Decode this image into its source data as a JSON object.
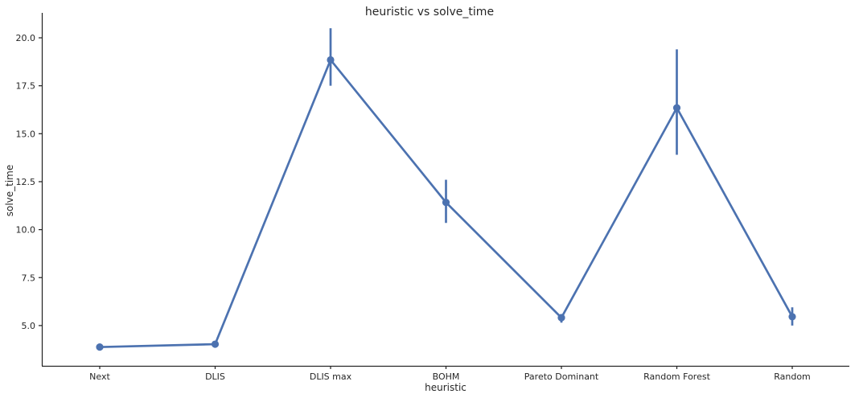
{
  "chart_data": {
    "type": "line",
    "title": "heuristic vs solve_time",
    "xlabel": "heuristic",
    "ylabel": "solve_time",
    "categories": [
      "Next",
      "DLIS",
      "DLIS max",
      "BOHM",
      "Pareto Dominant",
      "Random Forest",
      "Random"
    ],
    "series": [
      {
        "values": [
          3.88,
          4.03,
          18.85,
          11.42,
          5.41,
          16.35,
          5.46
        ],
        "error_low": [
          3.84,
          3.99,
          17.5,
          10.35,
          5.15,
          13.9,
          5.0
        ],
        "error_high": [
          3.92,
          4.07,
          20.5,
          12.6,
          5.6,
          19.4,
          5.95
        ],
        "color": "#4c72b0"
      }
    ],
    "ylim": [
      2.9,
      21.3
    ],
    "yticks": [
      5.0,
      7.5,
      10.0,
      12.5,
      15.0,
      17.5,
      20.0
    ],
    "ytick_labels": [
      "5.0",
      "7.5",
      "10.0",
      "12.5",
      "15.0",
      "17.5",
      "20.0"
    ],
    "grid": false,
    "legend": "none"
  }
}
